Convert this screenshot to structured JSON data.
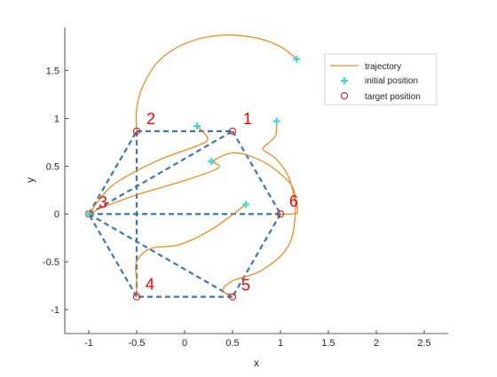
{
  "chart_data": {
    "type": "line",
    "title": "",
    "xlabel": "x",
    "ylabel": "y",
    "xlim": [
      -1.25,
      2.75
    ],
    "ylim": [
      -1.25,
      1.95
    ],
    "xticks": [
      -1,
      -0.5,
      0,
      0.5,
      1,
      1.5,
      2,
      2.5
    ],
    "xtick_labels": [
      "-1",
      "-0.5",
      "0",
      "0.5",
      "1",
      "1.5",
      "2",
      "2.5"
    ],
    "yticks": [
      -1,
      -0.5,
      0,
      0.5,
      1,
      1.5
    ],
    "ytick_labels": [
      "-1",
      "-0.5",
      "0",
      "0.5",
      "1",
      "1.5"
    ],
    "grid": false,
    "legend": {
      "placement": "top-right",
      "entries": [
        "trajectory",
        "initial position",
        "target position"
      ]
    },
    "colors": {
      "trajectory": "#f28a1e",
      "initial": "#40d8d0",
      "target": "#e21b1b",
      "formation": "#3d78b0",
      "labels": "#ff0000"
    },
    "target_positions": [
      {
        "label": "1",
        "x": 0.5,
        "y": 0.866
      },
      {
        "label": "2",
        "x": -0.5,
        "y": 0.866
      },
      {
        "label": "3",
        "x": -1.0,
        "y": 0.0
      },
      {
        "label": "4",
        "x": -0.5,
        "y": -0.866
      },
      {
        "label": "5",
        "x": 0.5,
        "y": -0.866
      },
      {
        "label": "6",
        "x": 1.0,
        "y": 0.0
      }
    ],
    "initial_positions": [
      {
        "x": 1.17,
        "y": 1.62
      },
      {
        "x": 0.13,
        "y": 0.92
      },
      {
        "x": 0.96,
        "y": 0.97
      },
      {
        "x": 0.28,
        "y": 0.55
      },
      {
        "x": 0.64,
        "y": 0.1
      },
      {
        "x": -1.0,
        "y": 0.0
      }
    ],
    "formation_edges": [
      [
        [
          -0.5,
          0.866
        ],
        [
          0.5,
          0.866
        ]
      ],
      [
        [
          0.5,
          0.866
        ],
        [
          1.0,
          0.0
        ]
      ],
      [
        [
          1.0,
          0.0
        ],
        [
          0.5,
          -0.866
        ]
      ],
      [
        [
          0.5,
          -0.866
        ],
        [
          -0.5,
          -0.866
        ]
      ],
      [
        [
          -0.5,
          -0.866
        ],
        [
          -1.0,
          0.0
        ]
      ],
      [
        [
          -1.0,
          0.0
        ],
        [
          -0.5,
          0.866
        ]
      ],
      [
        [
          -0.5,
          0.866
        ],
        [
          -0.5,
          -0.866
        ]
      ],
      [
        [
          -1.0,
          0.0
        ],
        [
          1.0,
          0.0
        ]
      ],
      [
        [
          -1.0,
          0.0
        ],
        [
          0.5,
          0.866
        ]
      ],
      [
        [
          -1.0,
          0.0
        ],
        [
          0.5,
          -0.866
        ]
      ]
    ],
    "trajectories": [
      {
        "points": [
          [
            1.17,
            1.62
          ],
          [
            1.0,
            1.75
          ],
          [
            0.75,
            1.84
          ],
          [
            0.4,
            1.87
          ],
          [
            0.05,
            1.8
          ],
          [
            -0.25,
            1.62
          ],
          [
            -0.43,
            1.35
          ],
          [
            -0.5,
            1.1
          ],
          [
            -0.5,
            0.866
          ]
        ]
      },
      {
        "points": [
          [
            0.13,
            0.92
          ],
          [
            0.2,
            0.85
          ],
          [
            0.24,
            0.78
          ],
          [
            0.15,
            0.72
          ],
          [
            -0.3,
            0.55
          ],
          [
            -0.75,
            0.3
          ],
          [
            -1.0,
            0.0
          ]
        ]
      },
      {
        "points": [
          [
            0.28,
            0.55
          ],
          [
            0.35,
            0.48
          ],
          [
            0.0,
            0.35
          ],
          [
            -0.5,
            0.2
          ],
          [
            -0.85,
            0.07
          ],
          [
            -1.0,
            0.0
          ]
        ]
      },
      {
        "points": [
          [
            0.96,
            0.97
          ],
          [
            0.95,
            0.82
          ],
          [
            0.85,
            0.72
          ],
          [
            0.82,
            0.67
          ],
          [
            0.95,
            0.58
          ],
          [
            1.08,
            0.4
          ],
          [
            1.15,
            0.15
          ],
          [
            1.18,
            0.02
          ],
          [
            1.1,
            0.0
          ],
          [
            1.0,
            0.0
          ]
        ]
      },
      {
        "points": [
          [
            0.28,
            0.55
          ],
          [
            0.5,
            0.64
          ],
          [
            0.75,
            0.58
          ],
          [
            1.0,
            0.42
          ],
          [
            1.15,
            0.2
          ],
          [
            1.1,
            -0.3
          ],
          [
            0.82,
            -0.58
          ],
          [
            0.5,
            -0.7
          ],
          [
            0.4,
            -0.8
          ],
          [
            0.5,
            -0.866
          ]
        ]
      },
      {
        "points": [
          [
            0.64,
            0.1
          ],
          [
            0.3,
            -0.15
          ],
          [
            -0.05,
            -0.32
          ],
          [
            -0.35,
            -0.36
          ],
          [
            -0.5,
            -0.5
          ],
          [
            -0.5,
            -0.7
          ],
          [
            -0.5,
            -0.866
          ]
        ]
      }
    ]
  }
}
